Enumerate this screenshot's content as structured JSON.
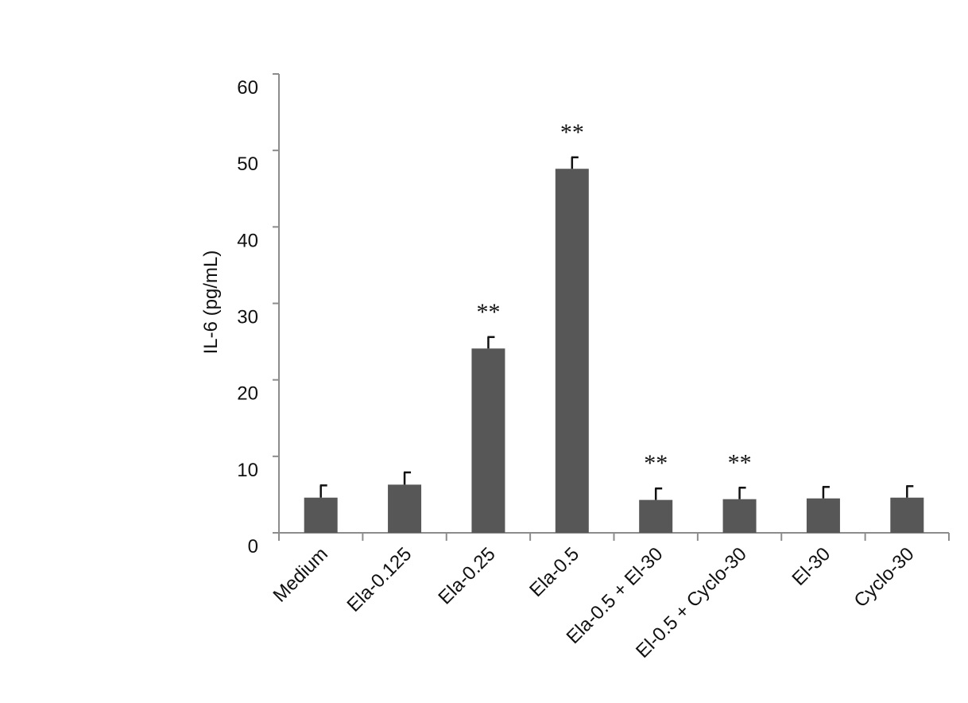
{
  "chart_data": {
    "type": "bar",
    "ylabel": "IL-6 (pg/mL)",
    "categories": [
      "Medium",
      "Ela-0.125",
      "Ela-0.25",
      "Ela-0.5",
      "Ela-0.5 + El-30",
      "El-0.5 + Cyclo-30",
      "El-30",
      "Cyclo-30"
    ],
    "values": [
      4.6,
      6.3,
      24.1,
      47.6,
      4.3,
      4.4,
      4.5,
      4.6
    ],
    "errors": [
      1.6,
      1.6,
      1.5,
      1.5,
      1.5,
      1.5,
      1.5,
      1.5
    ],
    "color": "#575757",
    "ylim": [
      0,
      60
    ],
    "yticks": [
      0,
      10,
      20,
      30,
      40,
      50,
      60
    ],
    "annotations": [
      {
        "category": "Ela-0.25",
        "text": "**"
      },
      {
        "category": "Ela-0.5",
        "text": "**"
      },
      {
        "category": "Ela-0.5 + El-30",
        "text": "**"
      },
      {
        "category": "El-0.5 + Cyclo-30",
        "text": "**"
      }
    ]
  }
}
